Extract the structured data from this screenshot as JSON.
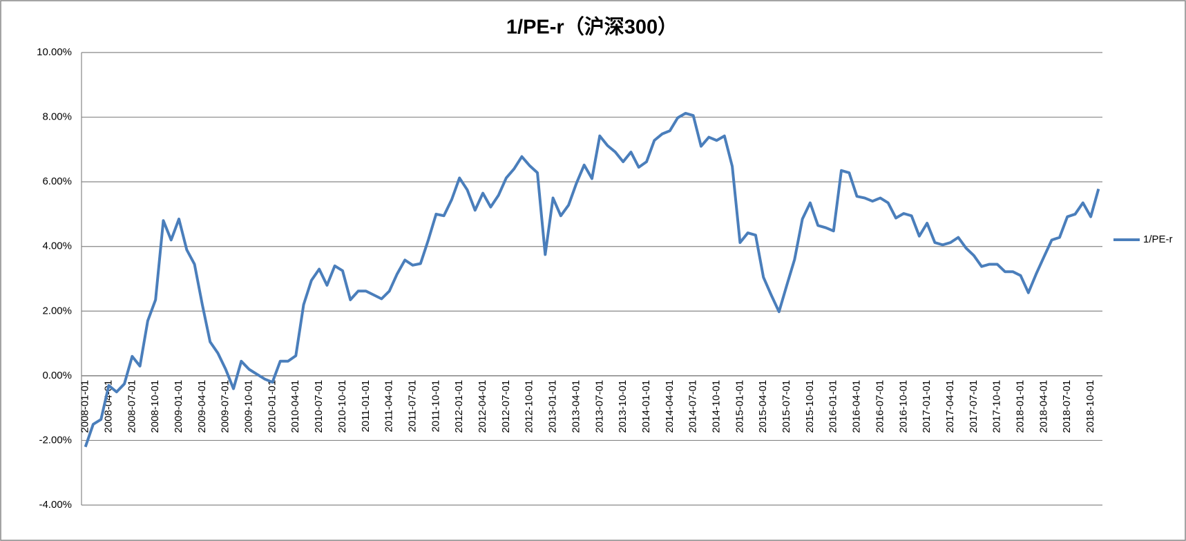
{
  "chart_data": {
    "type": "line",
    "title": "1/PE-r（沪深300）",
    "categories": [
      "2008-01-01",
      null,
      null,
      "2008-04-01",
      null,
      null,
      "2008-07-01",
      null,
      null,
      "2008-10-01",
      null,
      null,
      "2009-01-01",
      null,
      null,
      "2009-04-01",
      null,
      null,
      "2009-07-01",
      null,
      null,
      "2009-10-01",
      null,
      null,
      "2010-01-01",
      null,
      null,
      "2010-04-01",
      null,
      null,
      "2010-07-01",
      null,
      null,
      "2010-10-01",
      null,
      null,
      "2011-01-01",
      null,
      null,
      "2011-04-01",
      null,
      null,
      "2011-07-01",
      null,
      null,
      "2011-10-01",
      null,
      null,
      "2012-01-01",
      null,
      null,
      "2012-04-01",
      null,
      null,
      "2012-07-01",
      null,
      null,
      "2012-10-01",
      null,
      null,
      "2013-01-01",
      null,
      null,
      "2013-04-01",
      null,
      null,
      "2013-07-01",
      null,
      null,
      "2013-10-01",
      null,
      null,
      "2014-01-01",
      null,
      null,
      "2014-04-01",
      null,
      null,
      "2014-07-01",
      null,
      null,
      "2014-10-01",
      null,
      null,
      "2015-01-01",
      null,
      null,
      "2015-04-01",
      null,
      null,
      "2015-07-01",
      null,
      null,
      "2015-10-01",
      null,
      null,
      "2016-01-01",
      null,
      null,
      "2016-04-01",
      null,
      null,
      "2016-07-01",
      null,
      null,
      "2016-10-01",
      null,
      null,
      "2017-01-01",
      null,
      null,
      "2017-04-01",
      null,
      null,
      "2017-07-01",
      null,
      null,
      "2017-10-01",
      null,
      null,
      "2018-01-01",
      null,
      null,
      "2018-04-01",
      null,
      null,
      "2018-07-01",
      null,
      null,
      "2018-10-01",
      null
    ],
    "series": [
      {
        "name": "1/PE-r",
        "color": "#4a7ebb",
        "values": [
          -2.2,
          -1.5,
          -1.35,
          -0.3,
          -0.5,
          -0.25,
          0.6,
          0.3,
          1.7,
          2.35,
          4.8,
          4.2,
          4.85,
          3.9,
          3.45,
          2.2,
          1.05,
          0.7,
          0.2,
          -0.4,
          0.45,
          0.2,
          0.05,
          -0.1,
          -0.2,
          0.45,
          0.45,
          0.62,
          2.2,
          2.95,
          3.3,
          2.8,
          3.4,
          3.25,
          2.35,
          2.62,
          2.62,
          2.5,
          2.38,
          2.62,
          3.15,
          3.58,
          3.42,
          3.47,
          4.2,
          5.0,
          4.95,
          5.45,
          6.12,
          5.75,
          5.12,
          5.65,
          5.22,
          5.58,
          6.12,
          6.4,
          6.78,
          6.5,
          6.28,
          3.75,
          5.5,
          4.95,
          5.28,
          5.95,
          6.52,
          6.1,
          7.42,
          7.12,
          6.92,
          6.62,
          6.92,
          6.45,
          6.62,
          7.28,
          7.48,
          7.58,
          7.98,
          8.12,
          8.05,
          7.1,
          7.38,
          7.28,
          7.42,
          6.48,
          4.12,
          4.42,
          4.35,
          3.05,
          2.5,
          1.98,
          2.8,
          3.6,
          4.85,
          5.35,
          4.65,
          4.58,
          4.48,
          6.35,
          6.28,
          5.55,
          5.5,
          5.4,
          5.5,
          5.35,
          4.88,
          5.02,
          4.95,
          4.32,
          4.72,
          4.12,
          4.05,
          4.12,
          4.28,
          3.95,
          3.72,
          3.38,
          3.45,
          3.45,
          3.22,
          3.22,
          3.1,
          2.57,
          3.15,
          3.68,
          4.2,
          4.28,
          4.92,
          5.0,
          5.35,
          4.92,
          5.78
        ]
      }
    ],
    "ylim": [
      -4,
      10
    ],
    "yticks": [
      {
        "value": -4,
        "label": "-4.00%"
      },
      {
        "value": -2,
        "label": "-2.00%"
      },
      {
        "value": 0,
        "label": "0.00%"
      },
      {
        "value": 2,
        "label": "2.00%"
      },
      {
        "value": 4,
        "label": "4.00%"
      },
      {
        "value": 6,
        "label": "6.00%"
      },
      {
        "value": 8,
        "label": "8.00%"
      },
      {
        "value": 10,
        "label": "10.00%"
      }
    ],
    "grid": true,
    "legend": "right"
  }
}
